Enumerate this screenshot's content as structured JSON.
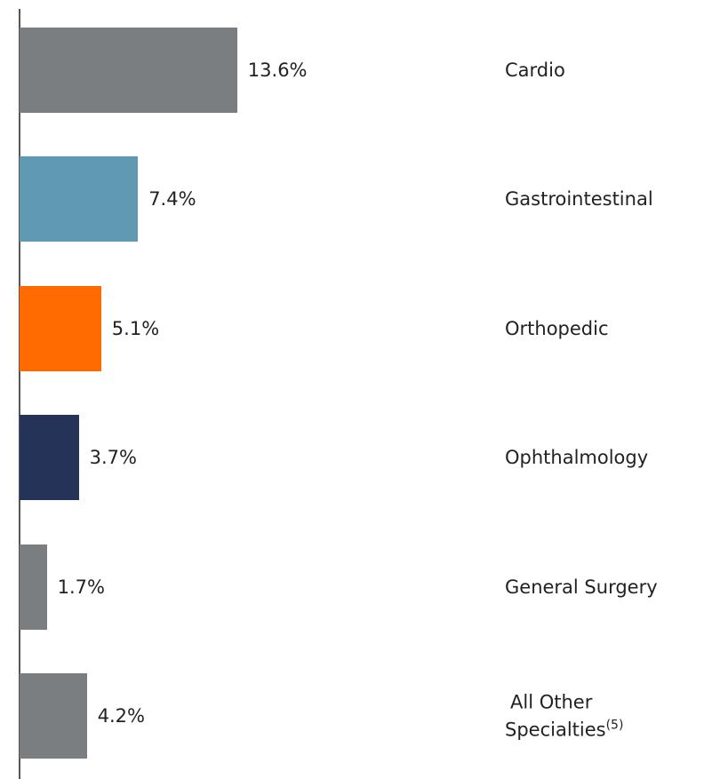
{
  "chart_data": {
    "type": "bar",
    "orientation": "horizontal",
    "categories": [
      "Cardio",
      "Gastrointestinal",
      "Orthopedic",
      "Ophthalmology",
      "General Surgery",
      "All Other Specialties"
    ],
    "footnote_marks": [
      null,
      null,
      null,
      null,
      null,
      "(5)"
    ],
    "values": [
      13.6,
      7.4,
      5.1,
      3.7,
      1.7,
      4.2
    ],
    "value_labels": [
      "13.6%",
      "7.4%",
      "5.1%",
      "3.7%",
      "1.7%",
      "4.2%"
    ],
    "colors": [
      "#7a7e80",
      "#5f9ab2",
      "#ff6b00",
      "#263359",
      "#7a7e80",
      "#7a7e80"
    ]
  }
}
